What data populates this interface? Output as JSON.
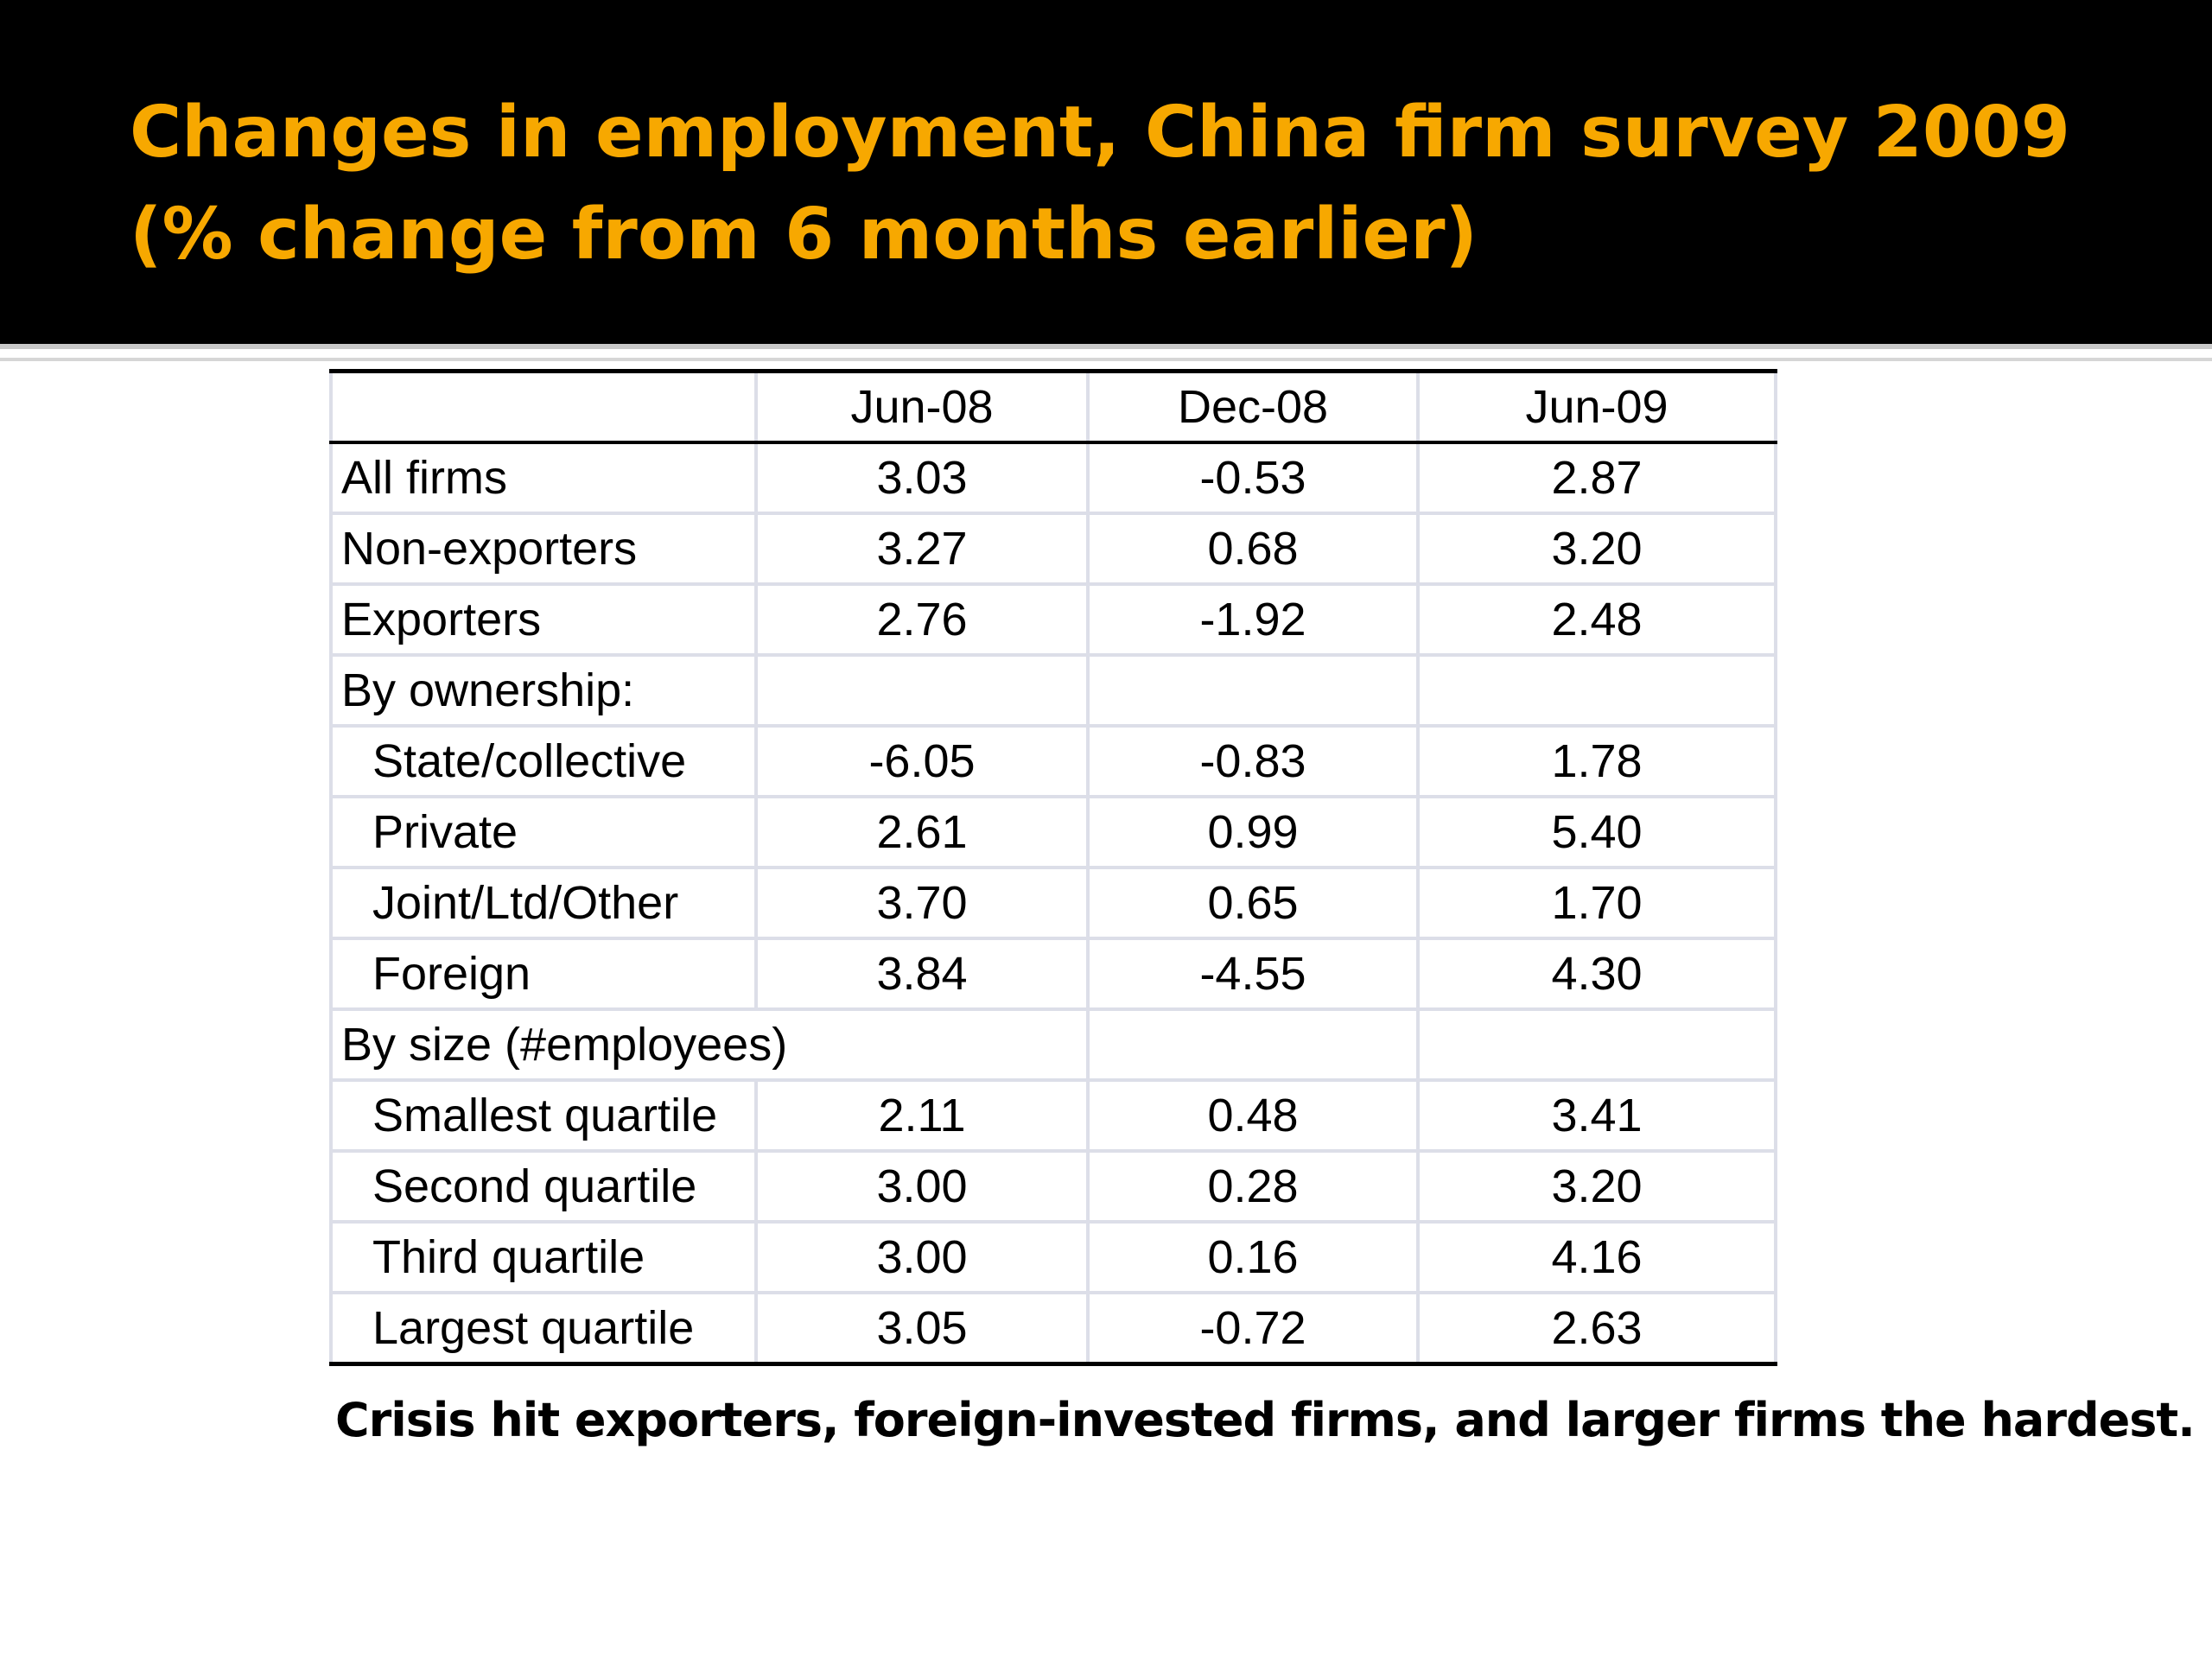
{
  "slide": {
    "title_line1": "Changes in employment, China firm survey 2009",
    "title_line2": "(% change from 6 months earlier)",
    "caption": "Crisis hit exporters, foreign-invested firms, and larger firms the hardest.",
    "colors": {
      "header_background": "#000000",
      "title": "#f7a800",
      "table_rule": "#000000",
      "table_gridline": "#dcdee8"
    }
  },
  "table": {
    "columns": [
      "",
      "Jun-08",
      "Dec-08",
      "Jun-09"
    ],
    "rows": [
      {
        "label": "All firms",
        "indent": false,
        "values": [
          "3.03",
          "-0.53",
          "2.87"
        ]
      },
      {
        "label": "Non-exporters",
        "indent": false,
        "values": [
          "3.27",
          "0.68",
          "3.20"
        ]
      },
      {
        "label": "Exporters",
        "indent": false,
        "values": [
          "2.76",
          "-1.92",
          "2.48"
        ]
      },
      {
        "label": "By ownership:",
        "indent": false,
        "values": [
          "",
          "",
          ""
        ]
      },
      {
        "label": "State/collective",
        "indent": true,
        "values": [
          "-6.05",
          "-0.83",
          "1.78"
        ]
      },
      {
        "label": "Private",
        "indent": true,
        "values": [
          "2.61",
          "0.99",
          "5.40"
        ]
      },
      {
        "label": "Joint/Ltd/Other",
        "indent": true,
        "values": [
          "3.70",
          "0.65",
          "1.70"
        ]
      },
      {
        "label": "Foreign",
        "indent": true,
        "values": [
          "3.84",
          "-4.55",
          "4.30"
        ]
      },
      {
        "label": "By size (#employees)",
        "indent": false,
        "span": true,
        "values": [
          "",
          ""
        ]
      },
      {
        "label": "Smallest quartile",
        "indent": true,
        "values": [
          "2.11",
          "0.48",
          "3.41"
        ]
      },
      {
        "label": "Second quartile",
        "indent": true,
        "values": [
          "3.00",
          "0.28",
          "3.20"
        ]
      },
      {
        "label": "Third quartile",
        "indent": true,
        "values": [
          "3.00",
          "0.16",
          "4.16"
        ]
      },
      {
        "label": "Largest quartile",
        "indent": true,
        "values": [
          "3.05",
          "-0.72",
          "2.63"
        ]
      }
    ]
  }
}
